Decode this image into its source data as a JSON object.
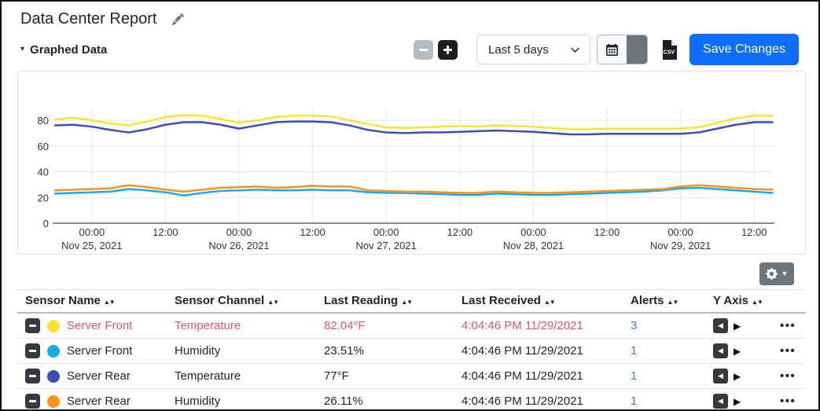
{
  "page": {
    "title": "Data Center Report"
  },
  "section": {
    "label": "Graphed Data"
  },
  "toolbar": {
    "range_value": "Last 5 days",
    "save_label": "Save Changes",
    "csv_label": "CSV"
  },
  "glyphs": {
    "section_caret": "▾",
    "gear_caret": "▼",
    "sort_icons": "▲▼",
    "yaxis_left": "◀",
    "yaxis_right": "▶",
    "ellipsis": "•••"
  },
  "colors": {
    "accent": "#0d6efd",
    "danger": "#e4536b",
    "link": "#3d7ed9",
    "grid": "#e6e6e6",
    "axis": "#666666",
    "tick_text": "#333333"
  },
  "chart_data": {
    "type": "line",
    "title": "",
    "xlabel": "",
    "ylabel": "",
    "ylim": [
      0,
      88
    ],
    "yticks": [
      0,
      20,
      40,
      60,
      80
    ],
    "grid": true,
    "legend": "none (colors keyed to table swatches)",
    "x_unit": "hours from Nov 24, 2021 18:00",
    "t_start": 0,
    "t_step": 3,
    "xticks": [
      {
        "t": 6,
        "time": "00:00",
        "date": "Nov 25, 2021"
      },
      {
        "t": 18,
        "time": "12:00",
        "date": ""
      },
      {
        "t": 30,
        "time": "00:00",
        "date": "Nov 26, 2021"
      },
      {
        "t": 42,
        "time": "12:00",
        "date": ""
      },
      {
        "t": 54,
        "time": "00:00",
        "date": "Nov 27, 2021"
      },
      {
        "t": 66,
        "time": "12:00",
        "date": ""
      },
      {
        "t": 78,
        "time": "00:00",
        "date": "Nov 28, 2021"
      },
      {
        "t": 90,
        "time": "12:00",
        "date": ""
      },
      {
        "t": 102,
        "time": "00:00",
        "date": "Nov 29, 2021"
      },
      {
        "t": 114,
        "time": "12:00",
        "date": ""
      }
    ],
    "series": [
      {
        "name": "Server Rear Temperature",
        "color": "#3f4cb8",
        "values": [
          76,
          76.5,
          75,
          72.5,
          70.5,
          73,
          76.5,
          78.5,
          78.5,
          76.5,
          73.5,
          76,
          78.5,
          79,
          79,
          78.5,
          76,
          72.5,
          70.5,
          70,
          70.5,
          70.5,
          71,
          71.5,
          72,
          71.5,
          71,
          70,
          69,
          69,
          69.5,
          69.5,
          69.5,
          69.5,
          69.5,
          70.5,
          73.5,
          76.5,
          78.5,
          78.5
        ]
      },
      {
        "name": "Server Front Temperature",
        "color": "#ffe135",
        "values": [
          80.5,
          82,
          80,
          77.5,
          76,
          79,
          82.5,
          84,
          83.5,
          81,
          78,
          80,
          82.5,
          83.5,
          83.5,
          83,
          80,
          77,
          74.5,
          74,
          74.5,
          75,
          75.5,
          75,
          76,
          75.5,
          75,
          74,
          73,
          73,
          73.5,
          73.5,
          73.5,
          73.5,
          73.5,
          74.5,
          78,
          81.5,
          83.5,
          83.5
        ]
      },
      {
        "name": "Server Front Humidity",
        "color": "#1ca9ec",
        "values": [
          23,
          23.5,
          24,
          24.5,
          26.5,
          25.5,
          24,
          21.5,
          23.5,
          25,
          25.5,
          26,
          25.5,
          25.5,
          26,
          25.5,
          25.5,
          24,
          23.5,
          23.5,
          23,
          22.5,
          22,
          22,
          23,
          22.5,
          22,
          22,
          22.5,
          23,
          23.5,
          24,
          24.5,
          25.5,
          27,
          27.5,
          26.5,
          25.5,
          24.5,
          23.5
        ]
      },
      {
        "name": "Server Rear Humidity",
        "color": "#f7941d",
        "values": [
          25.5,
          26,
          26.5,
          27,
          29.5,
          28,
          26,
          24.5,
          26,
          27.5,
          28,
          28.5,
          27.5,
          28,
          29,
          28.5,
          28.5,
          25.5,
          25,
          24.5,
          24.5,
          24,
          23.5,
          23.5,
          24.5,
          24,
          23.5,
          23.5,
          24,
          24.5,
          25,
          25.5,
          26,
          26.5,
          28.5,
          29.5,
          28.5,
          27.5,
          26.5,
          26.1
        ]
      }
    ]
  },
  "table": {
    "headers": [
      {
        "label": "Sensor Name"
      },
      {
        "label": "Sensor Channel"
      },
      {
        "label": "Last Reading"
      },
      {
        "label": "Last Received"
      },
      {
        "label": "Alerts"
      },
      {
        "label": "Y Axis"
      }
    ],
    "rows": [
      {
        "name": "Server Front",
        "channel": "Temperature",
        "reading": "82.04°F",
        "received": "4:04:46 PM 11/29/2021",
        "alerts": "3",
        "color": "#ffe135",
        "alert_state": true
      },
      {
        "name": "Server Front",
        "channel": "Humidity",
        "reading": "23.51%",
        "received": "4:04:46 PM 11/29/2021",
        "alerts": "1",
        "color": "#1ca9ec",
        "alert_state": false
      },
      {
        "name": "Server Rear",
        "channel": "Temperature",
        "reading": "77°F",
        "received": "4:04:46 PM 11/29/2021",
        "alerts": "1",
        "color": "#3f4cb8",
        "alert_state": false
      },
      {
        "name": "Server Rear",
        "channel": "Humidity",
        "reading": "26.11%",
        "received": "4:04:46 PM 11/29/2021",
        "alerts": "1",
        "color": "#f7941d",
        "alert_state": false
      }
    ]
  }
}
